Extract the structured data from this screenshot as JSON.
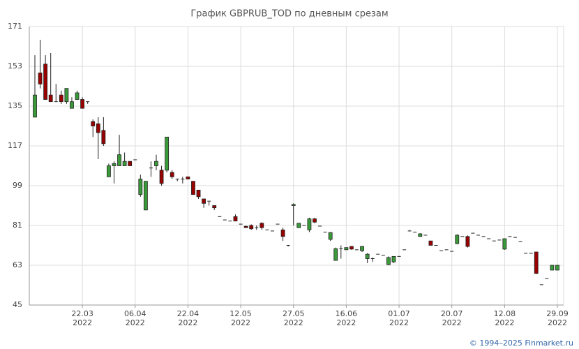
{
  "chart_data": {
    "type": "candlestick",
    "title": "График GBPRUB_TOD по дневным срезам",
    "footer": "© 1994–2025 Finmarket.ru",
    "categories": [
      null,
      null,
      null,
      null,
      null,
      null,
      null,
      null,
      null,
      [
        "22.03",
        "2022"
      ],
      null,
      null,
      null,
      null,
      null,
      null,
      null,
      null,
      null,
      [
        "06.04",
        "2022"
      ],
      null,
      null,
      null,
      null,
      null,
      null,
      null,
      null,
      null,
      [
        "22.04",
        "2022"
      ],
      null,
      null,
      null,
      null,
      null,
      null,
      null,
      null,
      null,
      [
        "12.05",
        "2022"
      ],
      null,
      null,
      null,
      null,
      null,
      null,
      null,
      null,
      null,
      [
        "27.05",
        "2022"
      ],
      null,
      null,
      null,
      null,
      null,
      null,
      null,
      null,
      null,
      [
        "16.06",
        "2022"
      ],
      null,
      null,
      null,
      null,
      null,
      null,
      null,
      null,
      null,
      [
        "01.07",
        "2022"
      ],
      null,
      null,
      null,
      null,
      null,
      null,
      null,
      null,
      null,
      [
        "20.07",
        "2022"
      ],
      null,
      null,
      null,
      null,
      null,
      null,
      null,
      null,
      null,
      [
        "12.08",
        "2022"
      ],
      null,
      null,
      null,
      null,
      null,
      null,
      null,
      null,
      null,
      [
        "29.09",
        "2022"
      ]
    ],
    "open": [
      130,
      150,
      154,
      140,
      137,
      140,
      137,
      134,
      138,
      138,
      137,
      128,
      127,
      124,
      103,
      108,
      108,
      108,
      110,
      110.7,
      95,
      88,
      107,
      108,
      106,
      106,
      105,
      102,
      102,
      103,
      101,
      97,
      93,
      92,
      90,
      85,
      83.5,
      83,
      85,
      81.6,
      80.6,
      81,
      80,
      82,
      79,
      78.5,
      81.6,
      79,
      72,
      90,
      80,
      81,
      79,
      84,
      80.7,
      78,
      74.7,
      65.2,
      70.5,
      70,
      71.5,
      70,
      69.6,
      66,
      66,
      68,
      67.5,
      63.3,
      64.5,
      67,
      70,
      78.5,
      78,
      76,
      76.6,
      74,
      72,
      69.6,
      70,
      69.3,
      72.8,
      76,
      76,
      77.5,
      76.6,
      76,
      75,
      74,
      74.4,
      70.3,
      76,
      75.6,
      73.7,
      68.4,
      68.4,
      69,
      54.2,
      57,
      60.8,
      60.8
    ],
    "high": [
      158,
      165,
      158,
      159,
      145,
      142,
      143,
      139,
      142,
      139,
      137,
      129,
      130,
      130,
      109,
      110,
      122,
      114,
      110,
      110.7,
      104,
      101,
      110,
      113,
      108,
      121,
      106,
      102,
      103,
      103,
      101,
      97,
      93,
      92,
      90,
      85,
      83.5,
      83,
      86,
      81.6,
      81,
      81.5,
      81,
      82.5,
      79,
      78.5,
      81.6,
      80,
      72,
      91,
      82,
      81,
      84.5,
      84.5,
      80.7,
      78,
      78,
      71,
      72,
      71,
      71.7,
      70,
      71.7,
      68.5,
      66.5,
      68,
      67.5,
      67,
      67,
      67,
      70,
      79,
      78,
      77.5,
      76.6,
      74,
      72,
      69.6,
      70,
      69.3,
      77,
      76,
      76.5,
      77.5,
      76.6,
      76,
      75,
      74,
      74.4,
      75,
      76,
      75.6,
      73.7,
      68.4,
      68.4,
      69,
      54.2,
      57,
      63,
      63
    ],
    "low": [
      130,
      143,
      138,
      137,
      137,
      136,
      136,
      134,
      138,
      134,
      136,
      121,
      111,
      117,
      103,
      100,
      108,
      108,
      108,
      110.7,
      94,
      88,
      103,
      106,
      99,
      105,
      102,
      101,
      100,
      102,
      95,
      93,
      89,
      90,
      88,
      85,
      83.5,
      83,
      83,
      81.6,
      80,
      79,
      79,
      79,
      79,
      78.5,
      81.6,
      74,
      71.5,
      81,
      80,
      81,
      78,
      82,
      80.7,
      78,
      74,
      65,
      66,
      70,
      70,
      70,
      69,
      64,
      64.5,
      68,
      67.5,
      63,
      64,
      67,
      70,
      78.5,
      78,
      76,
      76.6,
      72,
      72,
      69.6,
      70,
      69.3,
      72.5,
      76,
      71,
      77.5,
      76.6,
      76,
      75,
      74,
      74.4,
      70,
      76,
      75.6,
      73.7,
      68.4,
      68.4,
      59,
      54.2,
      57,
      60.8,
      60.8
    ],
    "close": [
      140,
      145,
      138,
      137,
      137,
      137,
      143,
      137,
      141,
      134,
      137,
      126,
      123,
      118,
      108,
      109,
      113,
      110,
      108,
      110.7,
      102,
      101,
      107,
      110,
      100,
      121,
      103,
      102,
      102,
      102,
      95,
      94,
      91,
      92,
      89,
      85,
      83.5,
      83,
      83,
      81.6,
      80,
      79.5,
      80,
      80,
      79,
      78.5,
      81.6,
      76,
      72,
      90.5,
      82,
      81,
      84,
      82.5,
      80.7,
      78,
      77.8,
      70.5,
      70.5,
      71,
      70.3,
      70,
      71.5,
      68,
      66,
      68,
      67.5,
      66.5,
      67,
      67,
      70,
      78.5,
      78,
      77.2,
      76.6,
      72,
      72,
      69.6,
      70,
      69.3,
      76.6,
      76,
      71.5,
      77.5,
      76.6,
      76,
      75,
      74,
      74.4,
      75,
      76,
      75.6,
      73.7,
      68.4,
      68.4,
      59.3,
      54.2,
      57,
      63,
      63
    ],
    "up_color": "#3a9a3a",
    "down_color": "#990000",
    "ylim": [
      45,
      171
    ],
    "yticks": [
      45,
      63,
      81,
      99,
      117,
      135,
      153,
      171
    ],
    "grid": true
  }
}
